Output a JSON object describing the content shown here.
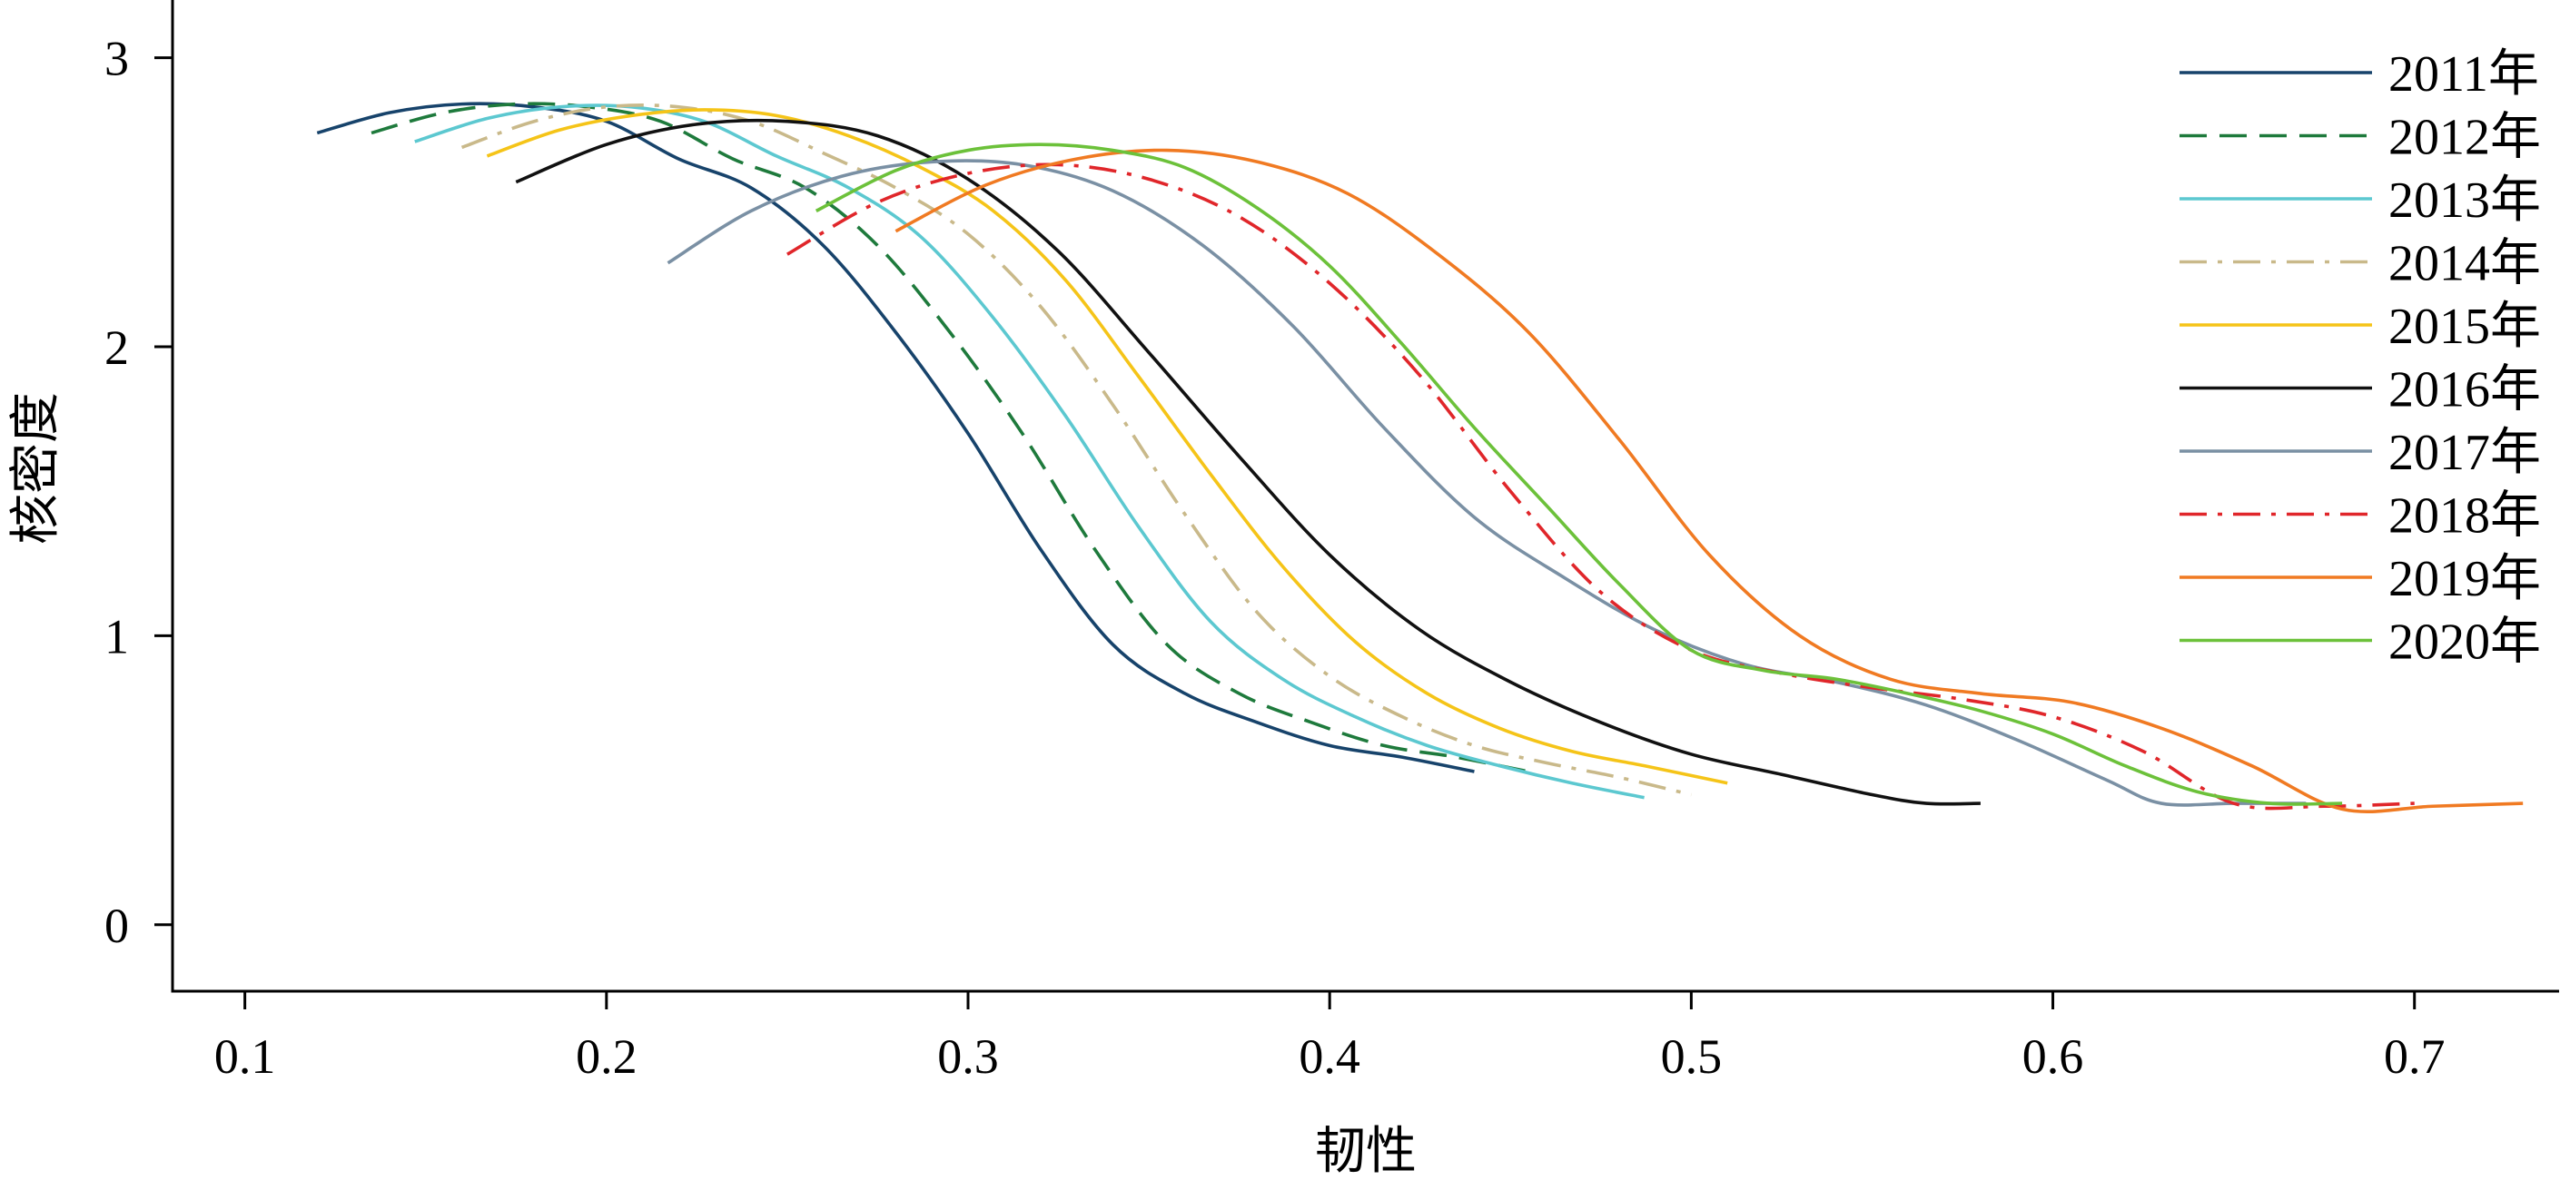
{
  "chart_data": {
    "type": "line",
    "title": "",
    "xlabel": "韧性",
    "ylabel": "核密度",
    "xlim": [
      0.08,
      0.74
    ],
    "ylim": [
      -0.23,
      3.2
    ],
    "xticks": [
      0.1,
      0.2,
      0.3,
      0.4,
      0.5,
      0.6,
      0.7
    ],
    "xtick_labels": [
      "0.1",
      "0.2",
      "0.3",
      "0.4",
      "0.5",
      "0.6",
      "0.7"
    ],
    "yticks": [
      0,
      1,
      2,
      3
    ],
    "ytick_labels": [
      "0",
      "1",
      "2",
      "3"
    ],
    "grid": false,
    "legend_position": "top-right",
    "series": [
      {
        "name": "2011年",
        "color": "#17436b",
        "dash": "solid",
        "x": [
          0.12,
          0.14,
          0.16,
          0.18,
          0.2,
          0.22,
          0.24,
          0.26,
          0.28,
          0.3,
          0.32,
          0.34,
          0.36,
          0.38,
          0.4,
          0.42,
          0.44
        ],
        "y": [
          2.74,
          2.81,
          2.84,
          2.83,
          2.78,
          2.65,
          2.55,
          2.35,
          2.05,
          1.7,
          1.3,
          0.97,
          0.8,
          0.7,
          0.62,
          0.58,
          0.53
        ]
      },
      {
        "name": "2012年",
        "color": "#1e7a3c",
        "dash": "dashed",
        "x": [
          0.135,
          0.155,
          0.175,
          0.195,
          0.215,
          0.235,
          0.255,
          0.275,
          0.295,
          0.315,
          0.335,
          0.355,
          0.375,
          0.395,
          0.415,
          0.435,
          0.455
        ],
        "y": [
          2.74,
          2.81,
          2.84,
          2.83,
          2.78,
          2.65,
          2.55,
          2.35,
          2.05,
          1.7,
          1.3,
          0.97,
          0.8,
          0.7,
          0.62,
          0.58,
          0.53
        ]
      },
      {
        "name": "2013年",
        "color": "#5cc8d0",
        "dash": "solid",
        "x": [
          0.147,
          0.167,
          0.187,
          0.207,
          0.227,
          0.247,
          0.267,
          0.287,
          0.307,
          0.327,
          0.347,
          0.367,
          0.387,
          0.407,
          0.427,
          0.447,
          0.467,
          0.487
        ],
        "y": [
          2.71,
          2.79,
          2.83,
          2.83,
          2.78,
          2.66,
          2.55,
          2.38,
          2.1,
          1.76,
          1.38,
          1.05,
          0.85,
          0.72,
          0.62,
          0.55,
          0.49,
          0.44
        ]
      },
      {
        "name": "2014年",
        "color": "#c9b98a",
        "dash": "dashdot",
        "x": [
          0.16,
          0.18,
          0.2,
          0.22,
          0.24,
          0.26,
          0.28,
          0.3,
          0.32,
          0.34,
          0.36,
          0.38,
          0.4,
          0.42,
          0.44,
          0.46,
          0.48,
          0.5
        ],
        "y": [
          2.69,
          2.78,
          2.83,
          2.83,
          2.78,
          2.67,
          2.55,
          2.39,
          2.14,
          1.8,
          1.42,
          1.08,
          0.86,
          0.72,
          0.62,
          0.56,
          0.51,
          0.45
        ]
      },
      {
        "name": "2015年",
        "color": "#f5c418",
        "dash": "solid",
        "x": [
          0.167,
          0.187,
          0.207,
          0.227,
          0.247,
          0.267,
          0.287,
          0.307,
          0.327,
          0.347,
          0.367,
          0.387,
          0.407,
          0.427,
          0.447,
          0.467,
          0.487,
          0.51
        ],
        "y": [
          2.66,
          2.75,
          2.8,
          2.82,
          2.8,
          2.73,
          2.62,
          2.47,
          2.23,
          1.9,
          1.56,
          1.24,
          0.98,
          0.8,
          0.68,
          0.6,
          0.55,
          0.49
        ]
      },
      {
        "name": "2016年",
        "color": "#111111",
        "dash": "solid",
        "x": [
          0.175,
          0.2,
          0.225,
          0.25,
          0.275,
          0.3,
          0.325,
          0.35,
          0.375,
          0.4,
          0.425,
          0.45,
          0.475,
          0.5,
          0.525,
          0.55,
          0.565,
          0.58
        ],
        "y": [
          2.57,
          2.7,
          2.77,
          2.78,
          2.73,
          2.58,
          2.33,
          1.98,
          1.62,
          1.28,
          1.02,
          0.84,
          0.7,
          0.59,
          0.52,
          0.45,
          0.42,
          0.42
        ]
      },
      {
        "name": "2017年",
        "color": "#7a90a4",
        "dash": "solid",
        "x": [
          0.217,
          0.24,
          0.265,
          0.29,
          0.315,
          0.34,
          0.365,
          0.39,
          0.415,
          0.44,
          0.465,
          0.49,
          0.515,
          0.54,
          0.565,
          0.59,
          0.615,
          0.63,
          0.65,
          0.67
        ],
        "y": [
          2.29,
          2.47,
          2.59,
          2.64,
          2.63,
          2.54,
          2.35,
          2.07,
          1.72,
          1.41,
          1.2,
          1.02,
          0.9,
          0.84,
          0.76,
          0.64,
          0.5,
          0.42,
          0.42,
          0.42
        ]
      },
      {
        "name": "2018年",
        "color": "#e0262a",
        "dash": "dashdot",
        "x": [
          0.25,
          0.275,
          0.3,
          0.325,
          0.35,
          0.375,
          0.4,
          0.425,
          0.45,
          0.475,
          0.5,
          0.525,
          0.55,
          0.575,
          0.6,
          0.625,
          0.65,
          0.675,
          0.7
        ],
        "y": [
          2.32,
          2.5,
          2.6,
          2.63,
          2.58,
          2.45,
          2.22,
          1.9,
          1.5,
          1.15,
          0.95,
          0.87,
          0.82,
          0.78,
          0.72,
          0.6,
          0.42,
          0.41,
          0.42
        ]
      },
      {
        "name": "2019年",
        "color": "#f07a22",
        "dash": "solid",
        "x": [
          0.28,
          0.305,
          0.33,
          0.355,
          0.38,
          0.405,
          0.43,
          0.455,
          0.48,
          0.505,
          0.53,
          0.555,
          0.58,
          0.605,
          0.63,
          0.655,
          0.68,
          0.705,
          0.73
        ],
        "y": [
          2.4,
          2.56,
          2.65,
          2.68,
          2.64,
          2.53,
          2.32,
          2.05,
          1.68,
          1.28,
          1.0,
          0.85,
          0.8,
          0.77,
          0.68,
          0.55,
          0.4,
          0.41,
          0.42
        ]
      },
      {
        "name": "2020年",
        "color": "#6cc13a",
        "dash": "solid",
        "x": [
          0.258,
          0.28,
          0.3,
          0.32,
          0.34,
          0.36,
          0.38,
          0.4,
          0.42,
          0.44,
          0.46,
          0.48,
          0.5,
          0.52,
          0.54,
          0.56,
          0.58,
          0.6,
          0.62,
          0.64,
          0.66,
          0.68
        ],
        "y": [
          2.47,
          2.61,
          2.68,
          2.7,
          2.68,
          2.62,
          2.48,
          2.28,
          2.01,
          1.72,
          1.45,
          1.18,
          0.95,
          0.88,
          0.85,
          0.8,
          0.74,
          0.66,
          0.55,
          0.46,
          0.42,
          0.42
        ]
      }
    ]
  }
}
